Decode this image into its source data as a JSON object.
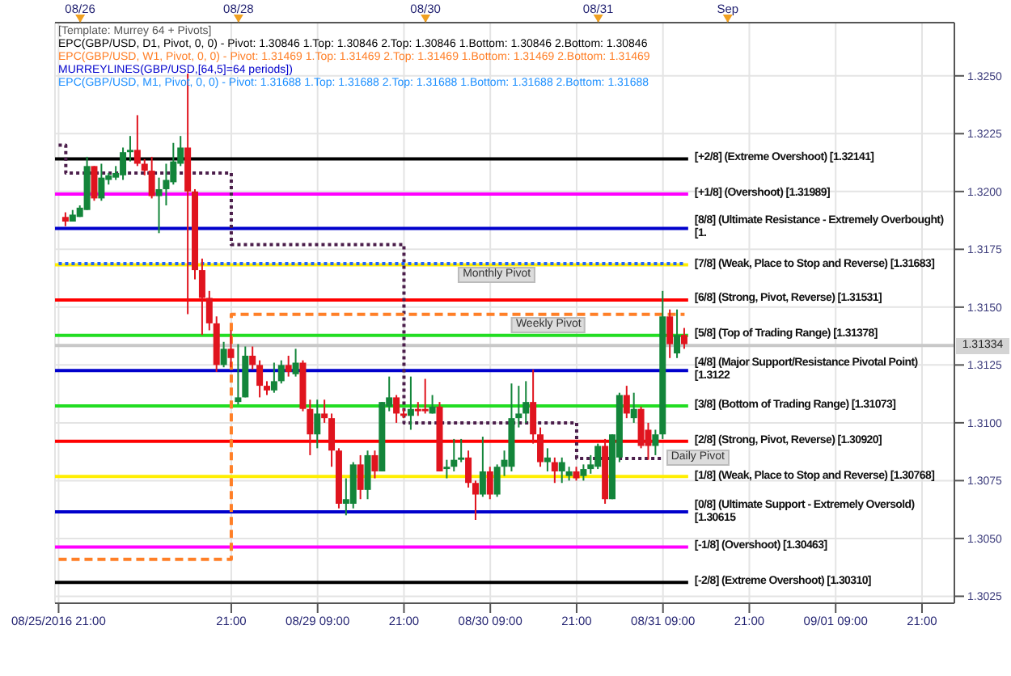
{
  "chart_data": {
    "type": "candlestick",
    "categories": [
      "08/25/2016 21:00",
      null,
      null,
      null,
      null,
      null,
      null,
      null,
      null,
      null,
      null,
      null,
      null,
      null,
      null,
      null,
      null,
      null,
      null,
      null,
      null,
      null,
      null,
      null,
      "21:00",
      null,
      null,
      null,
      null,
      null,
      null,
      null,
      null,
      null,
      null,
      null,
      "08/29 09:00",
      null,
      null,
      null,
      null,
      null,
      null,
      null,
      null,
      null,
      null,
      null,
      "21:00",
      null,
      null,
      null,
      null,
      null,
      null,
      null,
      null,
      null,
      null,
      null,
      "08/30 09:00",
      null,
      null,
      null,
      null,
      null,
      null,
      null,
      null,
      null,
      null,
      null,
      "21:00",
      null,
      null,
      null,
      null,
      null,
      null,
      null,
      null,
      null,
      null,
      null,
      "08/31 09:00",
      null,
      null,
      null,
      null,
      null,
      null,
      null,
      null,
      null,
      null,
      null,
      "21:00",
      null,
      null,
      null,
      null,
      null,
      null,
      null,
      null,
      null,
      null,
      null,
      "09/01 09:00",
      null,
      null,
      null,
      null,
      null,
      null,
      null,
      null,
      null,
      null,
      null,
      "21:00",
      null,
      null,
      null,
      null
    ],
    "ohlc": [
      null,
      [
        1.3189,
        1.3191,
        1.3185,
        1.3187
      ],
      [
        1.3187,
        1.3192,
        1.3187,
        1.319
      ],
      [
        1.3189,
        1.3194,
        1.3189,
        1.3193
      ],
      [
        1.3192,
        1.3215,
        1.3192,
        1.3211
      ],
      [
        1.3211,
        1.3211,
        1.3196,
        1.3197
      ],
      [
        1.3197,
        1.3212,
        1.3196,
        1.3206
      ],
      [
        1.3205,
        1.3208,
        1.3203,
        1.3207
      ],
      [
        1.3206,
        1.3211,
        1.3205,
        1.3208
      ],
      [
        1.3207,
        1.3219,
        1.3205,
        1.3217
      ],
      [
        1.3217,
        1.3224,
        1.3213,
        1.3218
      ],
      [
        1.3218,
        1.3233,
        1.3211,
        1.3212
      ],
      [
        1.3212,
        1.3214,
        1.3207,
        1.3209
      ],
      [
        1.3209,
        1.3215,
        1.3197,
        1.3198
      ],
      [
        1.3198,
        1.3206,
        1.3182,
        1.3201
      ],
      [
        1.3201,
        1.3212,
        1.3194,
        1.3205
      ],
      [
        1.3204,
        1.3221,
        1.3203,
        1.3213
      ],
      [
        1.3212,
        1.3224,
        1.3211,
        1.3219
      ],
      [
        1.3219,
        1.3251,
        1.3147,
        1.32
      ],
      [
        1.32,
        1.3201,
        1.3162,
        1.3166
      ],
      [
        1.3166,
        1.3171,
        1.3138,
        1.3154
      ],
      [
        1.3154,
        1.3157,
        1.314,
        1.3143
      ],
      [
        1.3143,
        1.3146,
        1.3122,
        1.3125
      ],
      [
        1.3125,
        1.3135,
        1.3124,
        1.3132
      ],
      [
        1.3132,
        1.314,
        1.3124,
        1.3128
      ],
      [
        1.3109,
        1.3134,
        1.3108,
        1.3111
      ],
      [
        1.3111,
        1.3133,
        1.3111,
        1.3129
      ],
      [
        1.3129,
        1.3133,
        1.3123,
        1.3125
      ],
      [
        1.3125,
        1.3127,
        1.3111,
        1.3116
      ],
      [
        1.3116,
        1.3118,
        1.3112,
        1.3114
      ],
      [
        1.3114,
        1.3126,
        1.3113,
        1.3118
      ],
      [
        1.3118,
        1.3127,
        1.3117,
        1.3125
      ],
      [
        1.3125,
        1.3129,
        1.312,
        1.3122
      ],
      [
        1.3121,
        1.3132,
        1.312,
        1.3126
      ],
      [
        1.3126,
        1.3127,
        1.3105,
        1.3106
      ],
      [
        1.3106,
        1.311,
        1.3086,
        1.3095
      ],
      [
        1.3095,
        1.311,
        1.3089,
        1.3104
      ],
      [
        1.3104,
        1.311,
        1.31,
        1.3102
      ],
      [
        1.3102,
        1.3104,
        1.3081,
        1.3088
      ],
      [
        1.3088,
        1.3089,
        1.3063,
        1.3065
      ],
      [
        1.3065,
        1.3076,
        1.306,
        1.3067
      ],
      [
        1.3065,
        1.3083,
        1.3063,
        1.3082
      ],
      [
        1.3082,
        1.3086,
        1.3067,
        1.3071
      ],
      [
        1.3071,
        1.3088,
        1.3067,
        1.3086
      ],
      [
        1.3086,
        1.3088,
        1.3076,
        1.3079
      ],
      [
        1.3079,
        1.3109,
        1.3079,
        1.3109
      ],
      [
        1.3107,
        1.312,
        1.3105,
        1.3111
      ],
      [
        1.3111,
        1.3112,
        1.31,
        1.3104
      ],
      [
        1.3104,
        1.3106,
        1.3102,
        1.3103
      ],
      [
        1.3103,
        1.312,
        1.3097,
        1.3106
      ],
      [
        1.3106,
        1.3109,
        1.3103,
        1.3105
      ],
      [
        1.3106,
        1.3119,
        1.3104,
        1.3105
      ],
      [
        1.3104,
        1.3112,
        1.3104,
        1.3107
      ],
      [
        1.3107,
        1.3109,
        1.3079,
        1.3079
      ],
      [
        1.308,
        1.3084,
        1.3076,
        1.3081
      ],
      [
        1.3081,
        1.3093,
        1.3079,
        1.3084
      ],
      [
        1.3084,
        1.3093,
        1.3083,
        1.3085
      ],
      [
        1.3085,
        1.3088,
        1.3072,
        1.3074
      ],
      [
        1.3074,
        1.3075,
        1.3058,
        1.3069
      ],
      [
        1.3069,
        1.3094,
        1.3068,
        1.3079
      ],
      [
        1.3079,
        1.3081,
        1.3067,
        1.3069
      ],
      [
        1.3069,
        1.3082,
        1.3068,
        1.3081
      ],
      [
        1.3081,
        1.3088,
        1.3077,
        1.3084
      ],
      [
        1.3081,
        1.3117,
        1.3079,
        1.3102
      ],
      [
        1.3102,
        1.3116,
        1.3098,
        1.3104
      ],
      [
        1.3104,
        1.3118,
        1.31,
        1.3109
      ],
      [
        1.3109,
        1.3123,
        1.3091,
        1.3095
      ],
      [
        1.3095,
        1.3098,
        1.3081,
        1.3083
      ],
      [
        1.3083,
        1.3089,
        1.3079,
        1.3085
      ],
      [
        1.3083,
        1.3085,
        1.3074,
        1.3079
      ],
      [
        1.3079,
        1.3085,
        1.3074,
        1.3083
      ],
      [
        1.3077,
        1.3081,
        1.3075,
        1.3079
      ],
      [
        1.3079,
        1.3081,
        1.3075,
        1.3076
      ],
      [
        1.3077,
        1.3082,
        1.3075,
        1.308
      ],
      [
        1.308,
        1.3086,
        1.3078,
        1.3082
      ],
      [
        1.3081,
        1.3091,
        1.308,
        1.309
      ],
      [
        1.309,
        1.3093,
        1.3065,
        1.3067
      ],
      [
        1.3067,
        1.3095,
        1.3067,
        1.3095
      ],
      [
        1.3085,
        1.3113,
        1.3083,
        1.3112
      ],
      [
        1.3112,
        1.3116,
        1.3102,
        1.3104
      ],
      [
        1.3102,
        1.3113,
        1.31,
        1.3106
      ],
      [
        1.3106,
        1.3107,
        1.3089,
        1.309
      ],
      [
        1.3097,
        1.31,
        1.3084,
        1.309
      ],
      [
        1.309,
        1.3097,
        1.3086,
        1.3095
      ],
      [
        1.3095,
        1.3157,
        1.3093,
        1.3146
      ],
      [
        1.3146,
        1.3149,
        1.3128,
        1.3134
      ],
      [
        1.313,
        1.3149,
        1.3128,
        1.3138
      ],
      [
        1.3138,
        1.3141,
        1.3132,
        1.3134
      ],
      null,
      null,
      null,
      null,
      null,
      null,
      null,
      null,
      null,
      null,
      null,
      null,
      null,
      null,
      null,
      null,
      null,
      null,
      null,
      null,
      null,
      null,
      null,
      null,
      null,
      null,
      null,
      null,
      null,
      null,
      null,
      null,
      null,
      null,
      null,
      null,
      null
    ],
    "series": [
      {
        "name": "Daily Pivot",
        "type": "step",
        "color": "#4b1e4b",
        "line_style": "dotted",
        "values": [
          1.322,
          1.3208,
          1.3208,
          1.3208,
          1.3208,
          1.3208,
          1.3208,
          1.3208,
          1.3208,
          1.3208,
          1.3208,
          1.3208,
          1.3208,
          1.3208,
          1.3208,
          1.3208,
          1.3208,
          1.3208,
          1.3208,
          1.3208,
          1.3208,
          1.3208,
          1.3208,
          1.3208,
          1.3177,
          1.3177,
          1.3177,
          1.3177,
          1.3177,
          1.3177,
          1.3177,
          1.3177,
          1.3177,
          1.3177,
          1.3177,
          1.3177,
          1.3177,
          1.3177,
          1.3177,
          1.3177,
          1.3177,
          1.3177,
          1.3177,
          1.3177,
          1.3177,
          1.3177,
          1.3177,
          1.3177,
          1.31,
          1.31,
          1.31,
          1.31,
          1.31,
          1.31,
          1.31,
          1.31,
          1.31,
          1.31,
          1.31,
          1.31,
          1.31,
          1.31,
          1.31,
          1.31,
          1.31,
          1.31,
          1.31,
          1.31,
          1.31,
          1.31,
          1.31,
          1.31,
          1.30846,
          1.30846,
          1.30846,
          1.30846,
          1.30846,
          1.30846,
          1.30846,
          1.30846,
          1.30846,
          1.30846,
          1.30846,
          1.30846,
          1.30846,
          null,
          null,
          null,
          null,
          null,
          null,
          null,
          null,
          null,
          null,
          null,
          null,
          null,
          null,
          null,
          null,
          null,
          null,
          null,
          null,
          null,
          null,
          null,
          null,
          null,
          null,
          null,
          null,
          null,
          null,
          null,
          null,
          null,
          null,
          null,
          null,
          null,
          null,
          null,
          null
        ]
      },
      {
        "name": "Weekly Pivot",
        "type": "step",
        "color": "#ff7f27",
        "line_style": "dashed",
        "values": [
          1.3041,
          1.3041,
          1.3041,
          1.3041,
          1.3041,
          1.3041,
          1.3041,
          1.3041,
          1.3041,
          1.3041,
          1.3041,
          1.3041,
          1.3041,
          1.3041,
          1.3041,
          1.3041,
          1.3041,
          1.3041,
          1.3041,
          1.3041,
          1.3041,
          1.3041,
          1.3041,
          1.3041,
          1.31469,
          1.31469,
          1.31469,
          1.31469,
          1.31469,
          1.31469,
          1.31469,
          1.31469,
          1.31469,
          1.31469,
          1.31469,
          1.31469,
          1.31469,
          1.31469,
          1.31469,
          1.31469,
          1.31469,
          1.31469,
          1.31469,
          1.31469,
          1.31469,
          1.31469,
          1.31469,
          1.31469,
          1.31469,
          1.31469,
          1.31469,
          1.31469,
          1.31469,
          1.31469,
          1.31469,
          1.31469,
          1.31469,
          1.31469,
          1.31469,
          1.31469,
          1.31469,
          1.31469,
          1.31469,
          1.31469,
          1.31469,
          1.31469,
          1.31469,
          1.31469,
          1.31469,
          1.31469,
          1.31469,
          1.31469,
          1.31469,
          1.31469,
          1.31469,
          1.31469,
          1.31469,
          1.31469,
          1.31469,
          1.31469,
          1.31469,
          1.31469,
          1.31469,
          1.31469,
          1.31469,
          1.31469,
          1.31469,
          1.31469,
          null,
          null,
          null,
          null,
          null,
          null,
          null,
          null,
          null,
          null,
          null,
          null,
          null,
          null,
          null,
          null,
          null,
          null,
          null,
          null,
          null,
          null,
          null,
          null,
          null,
          null,
          null,
          null,
          null,
          null,
          null,
          null,
          null,
          null,
          null,
          null,
          null
        ]
      },
      {
        "name": "Monthly Pivot",
        "type": "step",
        "color": "#1e64ff",
        "line_style": "dotted",
        "values": [
          1.31688,
          1.31688,
          1.31688,
          1.31688,
          1.31688,
          1.31688,
          1.31688,
          1.31688,
          1.31688,
          1.31688,
          1.31688,
          1.31688,
          1.31688,
          1.31688,
          1.31688,
          1.31688,
          1.31688,
          1.31688,
          1.31688,
          1.31688,
          1.31688,
          1.31688,
          1.31688,
          1.31688,
          1.31688,
          1.31688,
          1.31688,
          1.31688,
          1.31688,
          1.31688,
          1.31688,
          1.31688,
          1.31688,
          1.31688,
          1.31688,
          1.31688,
          1.31688,
          1.31688,
          1.31688,
          1.31688,
          1.31688,
          1.31688,
          1.31688,
          1.31688,
          1.31688,
          1.31688,
          1.31688,
          1.31688,
          1.31688,
          1.31688,
          1.31688,
          1.31688,
          1.31688,
          1.31688,
          1.31688,
          1.31688,
          1.31688,
          1.31688,
          1.31688,
          1.31688,
          1.31688,
          1.31688,
          1.31688,
          1.31688,
          1.31688,
          1.31688,
          1.31688,
          1.31688,
          1.31688,
          1.31688,
          1.31688,
          1.31688,
          1.31688,
          1.31688,
          1.31688,
          1.31688,
          1.31688,
          1.31688,
          1.31688,
          1.31688,
          1.31688,
          1.31688,
          1.31688,
          1.31688,
          1.31688,
          1.31688,
          1.31688,
          1.31688,
          null,
          null,
          null,
          null,
          null,
          null,
          null,
          null,
          null,
          null,
          null,
          null,
          null,
          null,
          null,
          null,
          null,
          null,
          null,
          null,
          null,
          null,
          null,
          null,
          null,
          null,
          null,
          null,
          null,
          null,
          null,
          null,
          null,
          null,
          null,
          null,
          null
        ]
      }
    ],
    "ref_lines": [
      {
        "axis": "y",
        "value": 1.32141,
        "label": "[+2/8] (Extreme Overshoot) [1.32141]",
        "color": "#000000"
      },
      {
        "axis": "y",
        "value": 1.31989,
        "label": "[+1/8] (Overshoot) [1.31989]",
        "color": "#ff00ff"
      },
      {
        "axis": "y",
        "value": 1.3184,
        "label": "[8/8] (Ultimate Resistance - Extremely Overbought) [1.",
        "color": "#0000cc"
      },
      {
        "axis": "y",
        "value": 1.31683,
        "label": "[7/8] (Weak, Place to Stop and Reverse) [1.31683]",
        "color": "#ffee00"
      },
      {
        "axis": "y",
        "value": 1.31531,
        "label": "[6/8] (Strong, Pivot, Reverse) [1.31531]",
        "color": "#ff0000"
      },
      {
        "axis": "y",
        "value": 1.31378,
        "label": "[5/8] (Top of Trading Range) [1.31378]",
        "color": "#22dd22"
      },
      {
        "axis": "y",
        "value": 1.31226,
        "label": "[4/8] (Major Support/Resistance Pivotal Point) [1.3122",
        "color": "#0000cc"
      },
      {
        "axis": "y",
        "value": 1.31073,
        "label": "[3/8] (Bottom of Trading Range) [1.31073]",
        "color": "#22dd22"
      },
      {
        "axis": "y",
        "value": 1.3092,
        "label": "[2/8] (Strong, Pivot, Reverse) [1.30920]",
        "color": "#ff0000"
      },
      {
        "axis": "y",
        "value": 1.30768,
        "label": "[1/8] (Weak, Place to Stop and Reverse) [1.30768]",
        "color": "#ffee00"
      },
      {
        "axis": "y",
        "value": 1.30615,
        "label": "[0/8] (Ultimate Support - Extremely Oversold) [1.30615",
        "color": "#0000cc"
      },
      {
        "axis": "y",
        "value": 1.30463,
        "label": "[-1/8] (Overshoot) [1.30463]",
        "color": "#ff00ff"
      },
      {
        "axis": "y",
        "value": 1.3031,
        "label": "[-2/8] (Extreme Overshoot) [1.30310]",
        "color": "#000000"
      },
      {
        "axis": "y",
        "value": 1.31334,
        "label": "1.31334",
        "color": "#c8c8c8"
      }
    ],
    "annotations": [
      "[Template: Murrey 64  + Pivots]",
      "EPC(GBP/USD, D1, Pivot, 0, 0) -  Pivot: 1.30846  1.Top: 1.30846  2.Top: 1.30846  1.Bottom: 1.30846  2.Bottom: 1.30846",
      "EPC(GBP/USD, W1, Pivot, 0, 0) -  Pivot: 1.31469  1.Top: 1.31469  2.Top: 1.31469  1.Bottom: 1.31469  2.Bottom: 1.31469",
      "MURREYLINES(GBP/USD,[64,5]=64 periods])",
      "EPC(GBP/USD, M1, Pivot, 0, 0) -  Pivot: 1.31688  1.Top: 1.31688  2.Top: 1.31688  1.Bottom: 1.31688  2.Bottom: 1.31688",
      "08/26",
      "08/28",
      "08/30",
      "08/31",
      "Sep"
    ],
    "ylim": [
      1.3022,
      1.3273
    ],
    "yticks": [
      1.3025,
      {
        "value": 1.305,
        "label": "1.3050"
      },
      1.3075,
      {
        "value": 1.31,
        "label": "1.3100"
      },
      1.3125,
      {
        "value": 1.315,
        "label": "1.3150"
      },
      1.3175,
      {
        "value": 1.32,
        "label": "1.3200"
      },
      1.3225,
      {
        "value": 1.325,
        "label": "1.3250"
      }
    ],
    "grid": true
  }
}
